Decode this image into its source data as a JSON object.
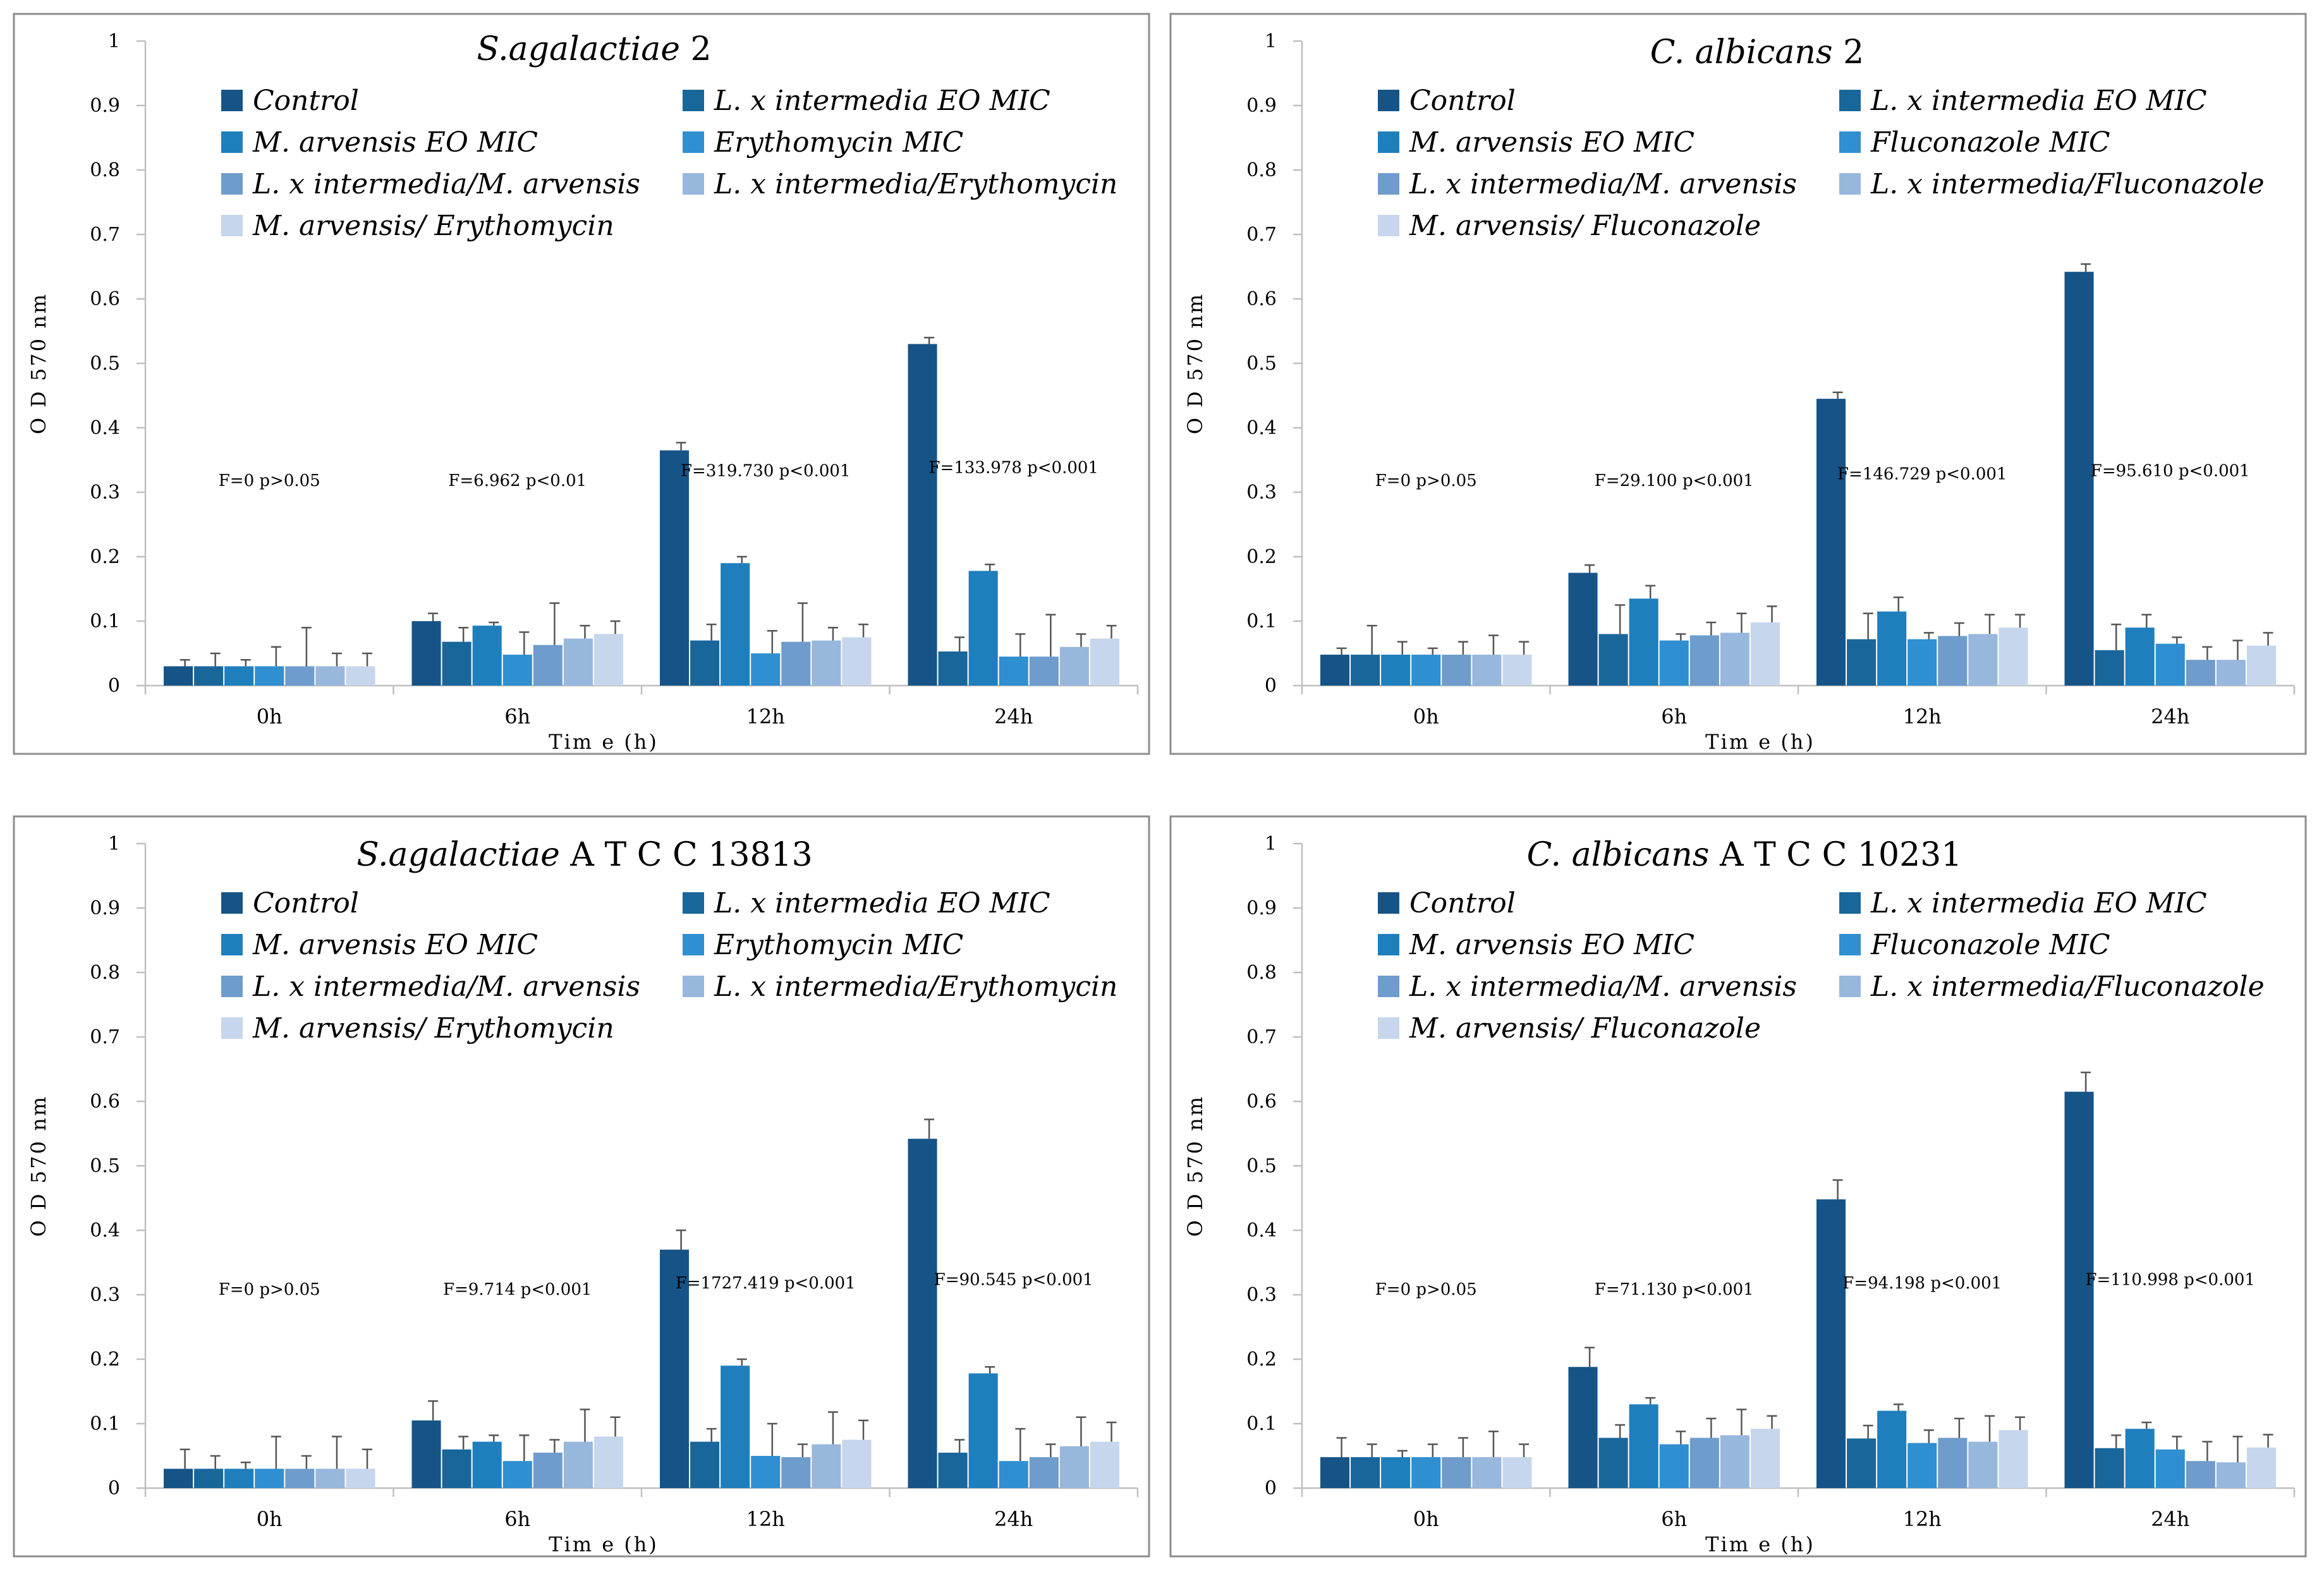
{
  "series_colors": [
    "#165487",
    "#19669b",
    "#1f7fbd",
    "#2f8fd0",
    "#6e9ccc",
    "#98b7dd",
    "#c6d6ec"
  ],
  "chart_data": [
    {
      "type": "bar",
      "title_italic": "S.agalactiae",
      "title_rest": " 2",
      "categories": [
        "0h",
        "6h",
        "12h",
        "24h"
      ],
      "xlabel": "Tim e (h)",
      "ylabel": "O D 570 nm",
      "ylim": [
        0,
        1
      ],
      "yticks": [
        "0",
        "0.1",
        "0.2",
        "0.3",
        "0.4",
        "0.5",
        "0.6",
        "0.7",
        "0.8",
        "0.9",
        "1"
      ],
      "legend": [
        "Control",
        "L. x intermedia EO MIC",
        "M. arvensis EO MIC",
        "Erythomycin MIC",
        "L. x intermedia/M. arvensis",
        "L. x intermedia/Erythomycin",
        "M. arvensis/ Erythomycin"
      ],
      "series": [
        {
          "name": "Control",
          "values": [
            0.03,
            0.1,
            0.365,
            0.53
          ],
          "errors": [
            0.01,
            0.012,
            0.012,
            0.01
          ]
        },
        {
          "name": "L. x intermedia EO MIC",
          "values": [
            0.03,
            0.068,
            0.07,
            0.053
          ],
          "errors": [
            0.02,
            0.022,
            0.025,
            0.022
          ]
        },
        {
          "name": "M. arvensis EO MIC",
          "values": [
            0.03,
            0.093,
            0.19,
            0.178
          ],
          "errors": [
            0.01,
            0.005,
            0.01,
            0.01
          ]
        },
        {
          "name": "Erythomycin MIC",
          "values": [
            0.03,
            0.048,
            0.05,
            0.045
          ],
          "errors": [
            0.03,
            0.035,
            0.035,
            0.035
          ]
        },
        {
          "name": "L. x intermedia/M. arvensis",
          "values": [
            0.03,
            0.063,
            0.068,
            0.045
          ],
          "errors": [
            0.06,
            0.065,
            0.06,
            0.065
          ]
        },
        {
          "name": "L. x intermedia/Erythomycin",
          "values": [
            0.03,
            0.073,
            0.07,
            0.06
          ],
          "errors": [
            0.02,
            0.02,
            0.02,
            0.02
          ]
        },
        {
          "name": "M. arvensis/ Erythomycin",
          "values": [
            0.03,
            0.08,
            0.075,
            0.073
          ],
          "errors": [
            0.02,
            0.02,
            0.02,
            0.02
          ]
        }
      ],
      "stats": [
        "F=0 p>0.05",
        "F=6.962 p<0.01",
        "F=319.730 p<0.001",
        "F=133.978 p<0.001"
      ],
      "stat_y": [
        0.31,
        0.31,
        0.325,
        0.33
      ]
    },
    {
      "type": "bar",
      "title_italic": "C. albicans",
      "title_rest": " 2",
      "categories": [
        "0h",
        "6h",
        "12h",
        "24h"
      ],
      "xlabel": "Tim e (h)",
      "ylabel": "O D 570 nm",
      "ylim": [
        0,
        1
      ],
      "yticks": [
        "0",
        "0.1",
        "0.2",
        "0.3",
        "0.4",
        "0.5",
        "0.6",
        "0.7",
        "0.8",
        "0.9",
        "1"
      ],
      "legend": [
        "Control",
        "L. x intermedia  EO MIC",
        "M. arvensis  EO MIC",
        "Fluconazole MIC",
        "L. x intermedia/M. arvensis",
        "L. x intermedia/Fluconazole",
        "M. arvensis/ Fluconazole"
      ],
      "series": [
        {
          "name": "Control",
          "values": [
            0.048,
            0.175,
            0.445,
            0.642
          ],
          "errors": [
            0.01,
            0.012,
            0.01,
            0.012
          ]
        },
        {
          "name": "L. x intermedia  EO MIC",
          "values": [
            0.048,
            0.08,
            0.072,
            0.055
          ],
          "errors": [
            0.045,
            0.045,
            0.04,
            0.04
          ]
        },
        {
          "name": "M. arvensis  EO MIC",
          "values": [
            0.048,
            0.135,
            0.115,
            0.09
          ],
          "errors": [
            0.02,
            0.02,
            0.022,
            0.02
          ]
        },
        {
          "name": "Fluconazole MIC",
          "values": [
            0.048,
            0.07,
            0.072,
            0.065
          ],
          "errors": [
            0.01,
            0.01,
            0.01,
            0.01
          ]
        },
        {
          "name": "L. x intermedia/M. arvensis",
          "values": [
            0.048,
            0.078,
            0.077,
            0.04
          ],
          "errors": [
            0.02,
            0.02,
            0.02,
            0.02
          ]
        },
        {
          "name": "L. x intermedia/Fluconazole",
          "values": [
            0.048,
            0.082,
            0.08,
            0.04
          ],
          "errors": [
            0.03,
            0.03,
            0.03,
            0.03
          ]
        },
        {
          "name": "M. arvensis/ Fluconazole",
          "values": [
            0.048,
            0.098,
            0.09,
            0.062
          ],
          "errors": [
            0.02,
            0.025,
            0.02,
            0.02
          ]
        }
      ],
      "stats": [
        "F=0 p>0.05",
        "F=29.100 p<0.001",
        "F=146.729 p<0.001",
        "F=95.610 p<0.001"
      ],
      "stat_y": [
        0.31,
        0.31,
        0.32,
        0.325
      ]
    },
    {
      "type": "bar",
      "title_italic": "S.agalactiae",
      "title_rest": " A T C C  13813",
      "categories": [
        "0h",
        "6h",
        "12h",
        "24h"
      ],
      "xlabel": "Tim e (h)",
      "ylabel": "O D 570 nm",
      "ylim": [
        0,
        1
      ],
      "yticks": [
        "0",
        "0.1",
        "0.2",
        "0.3",
        "0.4",
        "0.5",
        "0.6",
        "0.7",
        "0.8",
        "0.9",
        "1"
      ],
      "legend": [
        "Control",
        "L. x intermedia EO MIC",
        "M. arvensis EO MIC",
        "Erythomycin MIC",
        "L. x intermedia/M. arvensis",
        "L. x intermedia/Erythomycin",
        "M. arvensis/ Erythomycin"
      ],
      "series": [
        {
          "name": "Control",
          "values": [
            0.03,
            0.105,
            0.37,
            0.542
          ],
          "errors": [
            0.03,
            0.03,
            0.03,
            0.03
          ]
        },
        {
          "name": "L. x intermedia EO MIC",
          "values": [
            0.03,
            0.06,
            0.072,
            0.055
          ],
          "errors": [
            0.02,
            0.02,
            0.02,
            0.02
          ]
        },
        {
          "name": "M. arvensis EO MIC",
          "values": [
            0.03,
            0.072,
            0.19,
            0.178
          ],
          "errors": [
            0.01,
            0.01,
            0.01,
            0.01
          ]
        },
        {
          "name": "Erythomycin MIC",
          "values": [
            0.03,
            0.042,
            0.05,
            0.042
          ],
          "errors": [
            0.05,
            0.04,
            0.05,
            0.05
          ]
        },
        {
          "name": "L. x intermedia/M. arvensis",
          "values": [
            0.03,
            0.055,
            0.048,
            0.048
          ],
          "errors": [
            0.02,
            0.02,
            0.02,
            0.02
          ]
        },
        {
          "name": "L. x intermedia/Erythomycin",
          "values": [
            0.03,
            0.072,
            0.068,
            0.065
          ],
          "errors": [
            0.05,
            0.05,
            0.05,
            0.045
          ]
        },
        {
          "name": "M. arvensis/ Erythomycin",
          "values": [
            0.03,
            0.08,
            0.075,
            0.072
          ],
          "errors": [
            0.03,
            0.03,
            0.03,
            0.03
          ]
        }
      ],
      "stats": [
        "F=0 p>0.05",
        "F=9.714 p<0.001",
        "F=1727.419 p<0.001",
        "F=90.545 p<0.001"
      ],
      "stat_y": [
        0.3,
        0.3,
        0.31,
        0.315
      ]
    },
    {
      "type": "bar",
      "title_italic": "C. albicans",
      "title_rest": " A T C C  10231",
      "categories": [
        "0h",
        "6h",
        "12h",
        "24h"
      ],
      "xlabel": "Tim e (h)",
      "ylabel": "O D 570 nm",
      "ylim": [
        0,
        1
      ],
      "yticks": [
        "0",
        "0.1",
        "0.2",
        "0.3",
        "0.4",
        "0.5",
        "0.6",
        "0.7",
        "0.8",
        "0.9",
        "1"
      ],
      "legend": [
        "Control",
        "L. x intermedia  EO MIC",
        "M. arvensis  EO MIC",
        "Fluconazole MIC",
        "L. x intermedia/M. arvensis",
        "L. x intermedia/Fluconazole",
        "M. arvensis/ Fluconazole"
      ],
      "series": [
        {
          "name": "Control",
          "values": [
            0.048,
            0.188,
            0.448,
            0.615
          ],
          "errors": [
            0.03,
            0.03,
            0.03,
            0.03
          ]
        },
        {
          "name": "L. x intermedia  EO MIC",
          "values": [
            0.048,
            0.078,
            0.077,
            0.062
          ],
          "errors": [
            0.02,
            0.02,
            0.02,
            0.02
          ]
        },
        {
          "name": "M. arvensis  EO MIC",
          "values": [
            0.048,
            0.13,
            0.12,
            0.092
          ],
          "errors": [
            0.01,
            0.01,
            0.01,
            0.01
          ]
        },
        {
          "name": "Fluconazole MIC",
          "values": [
            0.048,
            0.068,
            0.07,
            0.06
          ],
          "errors": [
            0.02,
            0.02,
            0.02,
            0.02
          ]
        },
        {
          "name": "L. x intermedia/M. arvensis",
          "values": [
            0.048,
            0.078,
            0.078,
            0.042
          ],
          "errors": [
            0.03,
            0.03,
            0.03,
            0.03
          ]
        },
        {
          "name": "L. x intermedia/Fluconazole",
          "values": [
            0.048,
            0.082,
            0.072,
            0.04
          ],
          "errors": [
            0.04,
            0.04,
            0.04,
            0.04
          ]
        },
        {
          "name": "M. arvensis/ Fluconazole",
          "values": [
            0.048,
            0.092,
            0.09,
            0.063
          ],
          "errors": [
            0.02,
            0.02,
            0.02,
            0.02
          ]
        }
      ],
      "stats": [
        "F=0 p>0.05",
        "F=71.130 p<0.001",
        "F=94.198 p<0.001",
        "F=110.998 p<0.001"
      ],
      "stat_y": [
        0.3,
        0.3,
        0.31,
        0.315
      ]
    }
  ]
}
